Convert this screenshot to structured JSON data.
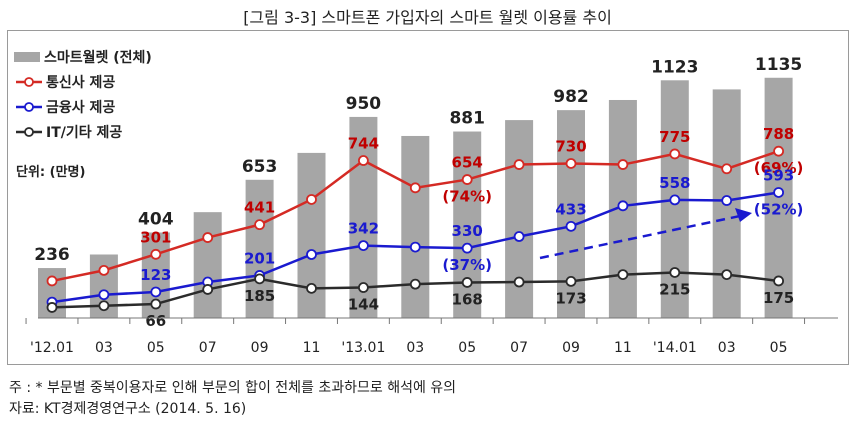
{
  "caption": "[그림 3-3] 스마트폰 가입자의 스마트 월렛 이용률 추이",
  "note": "주 : * 부문별 중복이용자로 인해 부문의 합이 전체를 초과하므로 해석에 유의",
  "source": "자료: KT경제경영연구소 (2014. 5. 16)",
  "chart_data": {
    "type": "bar",
    "unit_label": "단위: (만명)",
    "categories": [
      "'12.01",
      "03",
      "05",
      "07",
      "09",
      "11",
      "'13.01",
      "03",
      "05",
      "07",
      "09",
      "11",
      "'14.01",
      "03",
      "05"
    ],
    "legend_position": "top-left",
    "grid": false,
    "series": [
      {
        "name": "스마트월렛 (전체)",
        "type": "bar",
        "color": "#a6a6a6",
        "values": [
          236,
          300,
          404,
          500,
          653,
          780,
          950,
          860,
          881,
          935,
          982,
          1030,
          1123,
          1080,
          1135
        ],
        "labels": [
          "236",
          "",
          "404",
          "",
          "653",
          "",
          "950",
          "",
          "881",
          "",
          "982",
          "",
          "1123",
          "",
          "1135"
        ]
      },
      {
        "name": "통신사 제공",
        "type": "line",
        "color": "#d42a24",
        "label_color": "#c00000",
        "values": [
          175,
          225,
          301,
          380,
          441,
          560,
          744,
          615,
          654,
          725,
          730,
          725,
          775,
          705,
          788
        ],
        "labels": [
          "",
          "",
          "301",
          "",
          "441",
          "",
          "744",
          "",
          "654",
          "",
          "730",
          "",
          "775",
          "",
          "788"
        ],
        "annotations": [
          "",
          "",
          "",
          "",
          "",
          "",
          "",
          "",
          "(74%)",
          "",
          "",
          "",
          "",
          "",
          "(69%)"
        ]
      },
      {
        "name": "금융사 제공",
        "type": "line",
        "color": "#1a1acf",
        "label_color": "#1a1acf",
        "values": [
          75,
          110,
          123,
          170,
          201,
          300,
          342,
          335,
          330,
          385,
          433,
          530,
          558,
          555,
          593
        ],
        "labels": [
          "",
          "",
          "123",
          "",
          "201",
          "",
          "342",
          "",
          "330",
          "",
          "433",
          "",
          "558",
          "",
          "593"
        ],
        "annotations": [
          "",
          "",
          "",
          "",
          "",
          "",
          "",
          "",
          "(37%)",
          "",
          "",
          "",
          "",
          "",
          "(52%)"
        ]
      },
      {
        "name": "IT/기타 제공",
        "type": "line",
        "color": "#2b2b2b",
        "label_color": "#222222",
        "values": [
          50,
          58,
          66,
          135,
          185,
          140,
          144,
          160,
          168,
          170,
          173,
          205,
          215,
          205,
          175
        ],
        "labels": [
          "",
          "",
          "66",
          "",
          "185",
          "",
          "144",
          "",
          "168",
          "",
          "173",
          "",
          "215",
          "",
          "175"
        ]
      }
    ],
    "ylim": [
      0,
      1200
    ]
  }
}
